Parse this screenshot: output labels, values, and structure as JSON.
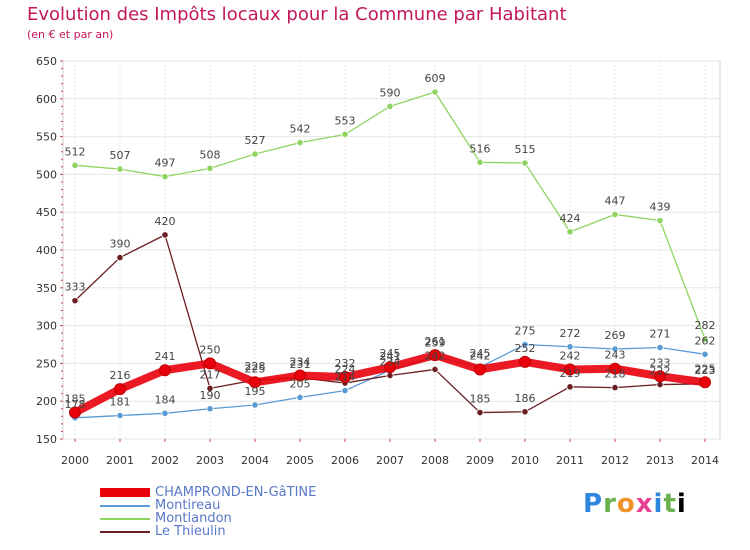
{
  "chart_data": {
    "type": "line",
    "title": "Evolution des Impôts locaux pour la Commune par Habitant",
    "subtitle": "(en € et par an)",
    "categories": [
      "2000",
      "2001",
      "2002",
      "2003",
      "2004",
      "2005",
      "2006",
      "2007",
      "2008",
      "2009",
      "2010",
      "2011",
      "2012",
      "2013",
      "2014"
    ],
    "ylim": [
      150,
      650
    ],
    "yticks": [
      150,
      200,
      250,
      300,
      350,
      400,
      450,
      500,
      550,
      600,
      650
    ],
    "series": [
      {
        "name": "CHAMPROND-EN-GâTINE",
        "color": "#e8000b",
        "values": [
          185,
          216,
          241,
          250,
          225,
          234,
          232,
          245,
          261,
          242,
          252,
          242,
          243,
          233,
          225
        ]
      },
      {
        "name": "Montireau",
        "color": "#5b9bd5",
        "values": [
          178,
          181,
          184,
          190,
          195,
          205,
          214,
          241,
          259,
          245,
          275,
          272,
          269,
          271,
          262
        ]
      },
      {
        "name": "Montlandon",
        "color": "#8fd460",
        "values": [
          512,
          507,
          497,
          508,
          527,
          542,
          553,
          590,
          609,
          516,
          515,
          424,
          447,
          439,
          282
        ]
      },
      {
        "name": "Le Thieulin",
        "color": "#6b1f24",
        "values": [
          333,
          390,
          420,
          217,
          228,
          231,
          224,
          234,
          242,
          185,
          186,
          219,
          218,
          222,
          223
        ]
      }
    ]
  },
  "brand": {
    "letters": [
      "P",
      "r",
      "o",
      "x",
      "i",
      "t",
      "i"
    ],
    "text": "Proxiti"
  }
}
